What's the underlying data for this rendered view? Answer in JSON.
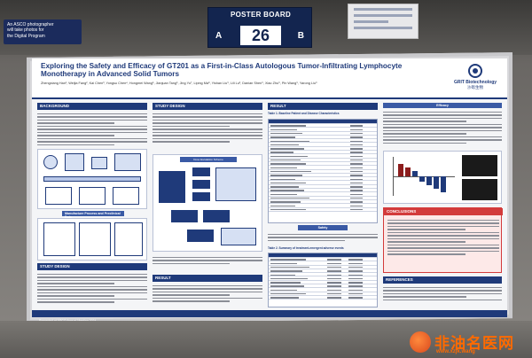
{
  "venue": {
    "asco_sign_lines": [
      "An ASCO photographer",
      "will take photos for",
      "the Digital Program"
    ],
    "board_title": "POSTER BOARD",
    "board_left": "A",
    "board_number": "26",
    "board_right": "B"
  },
  "poster": {
    "title": "Exploring the Safety and Efficacy of GT201 as a First-in-Class Autologous Tumor-Infiltrating Lymphocyte Monotherapy in Advanced Solid Tumors",
    "authors": "Zhengxiang Han¹, Weijia Fang², Kai Chen³, Yongsu Chen⁴, Hongmei Wang⁵, Jianjuan Tang⁶, Jing Yu⁷, Liping Ma⁸, Yishan Liu⁹, Lili Lu², Danian Shen⁹, Xiao Zhu⁹, Pin Wang⁹, Yarong Liu⁹",
    "logo_name": "GRIT Biotechnology",
    "logo_cn": "沙砾生物",
    "sections": {
      "background": "BACKGROUND",
      "study_design_left": "STUDY DESIGN",
      "study_design_mid": "STUDY DESIGN",
      "result_mid": "RESULT",
      "result_right": "RESULT",
      "conclusions": "CONCLUSIONS",
      "references": "REFERENCES"
    },
    "table_title": "Table 1. Baseline Patient and Disease Characteristics",
    "table2_title": "Table 2. Summary of treatment-emergent adverse events",
    "efficacy_label": "Efficacy",
    "safety_label": "Safety",
    "diagram_title": "Dose Escalation Scheme",
    "manufacture_label": "Manufacture Process and Preclinical Data",
    "footer": "Presented at ASCO Annual Meeting 2024"
  },
  "watermark": {
    "text_cn": "非油名医网",
    "url": "www.xzjk.wang"
  }
}
